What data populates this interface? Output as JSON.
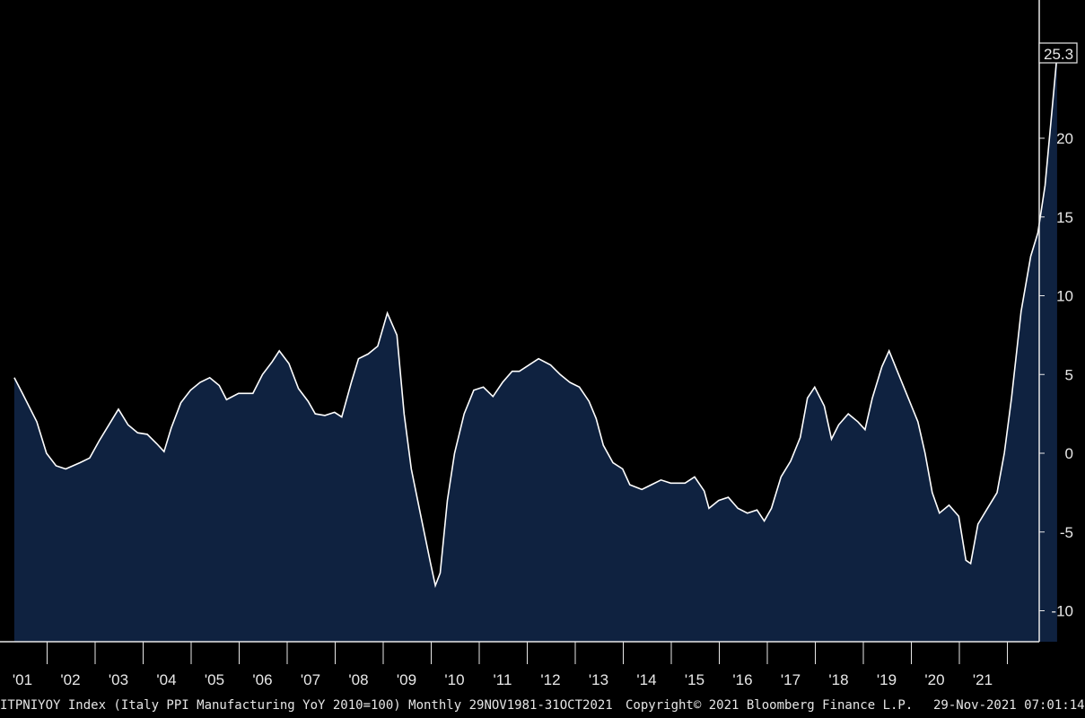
{
  "chart_data": {
    "type": "area",
    "series": [
      {
        "values": [
          [
            2000.83,
            4.8
          ],
          [
            2001.0,
            3.8
          ],
          [
            2001.3,
            2.0
          ],
          [
            2001.5,
            0.0
          ],
          [
            2001.7,
            -0.8
          ],
          [
            2001.9,
            -1.0
          ],
          [
            2002.2,
            -0.6
          ],
          [
            2002.4,
            -0.3
          ],
          [
            2002.6,
            0.8
          ],
          [
            2002.8,
            1.8
          ],
          [
            2003.0,
            2.8
          ],
          [
            2003.2,
            1.8
          ],
          [
            2003.4,
            1.3
          ],
          [
            2003.6,
            1.2
          ],
          [
            2003.8,
            0.6
          ],
          [
            2003.95,
            0.1
          ],
          [
            2004.1,
            1.6
          ],
          [
            2004.3,
            3.2
          ],
          [
            2004.5,
            4.0
          ],
          [
            2004.7,
            4.5
          ],
          [
            2004.9,
            4.8
          ],
          [
            2005.1,
            4.3
          ],
          [
            2005.25,
            3.4
          ],
          [
            2005.5,
            3.8
          ],
          [
            2005.8,
            3.8
          ],
          [
            2006.0,
            5.0
          ],
          [
            2006.2,
            5.8
          ],
          [
            2006.35,
            6.5
          ],
          [
            2006.55,
            5.7
          ],
          [
            2006.75,
            4.1
          ],
          [
            2006.95,
            3.3
          ],
          [
            2007.1,
            2.5
          ],
          [
            2007.3,
            2.4
          ],
          [
            2007.5,
            2.6
          ],
          [
            2007.65,
            2.3
          ],
          [
            2007.85,
            4.5
          ],
          [
            2008.0,
            6.0
          ],
          [
            2008.2,
            6.3
          ],
          [
            2008.4,
            6.8
          ],
          [
            2008.6,
            8.9
          ],
          [
            2008.8,
            7.5
          ],
          [
            2008.95,
            2.5
          ],
          [
            2009.1,
            -1.0
          ],
          [
            2009.3,
            -4.0
          ],
          [
            2009.5,
            -7.0
          ],
          [
            2009.6,
            -8.4
          ],
          [
            2009.7,
            -7.6
          ],
          [
            2009.85,
            -3.0
          ],
          [
            2010.0,
            0.0
          ],
          [
            2010.2,
            2.5
          ],
          [
            2010.4,
            4.0
          ],
          [
            2010.6,
            4.2
          ],
          [
            2010.8,
            3.6
          ],
          [
            2011.0,
            4.5
          ],
          [
            2011.2,
            5.2
          ],
          [
            2011.35,
            5.2
          ],
          [
            2011.55,
            5.6
          ],
          [
            2011.75,
            6.0
          ],
          [
            2012.0,
            5.6
          ],
          [
            2012.2,
            5.0
          ],
          [
            2012.4,
            4.5
          ],
          [
            2012.6,
            4.2
          ],
          [
            2012.8,
            3.3
          ],
          [
            2012.95,
            2.2
          ],
          [
            2013.1,
            0.5
          ],
          [
            2013.3,
            -0.6
          ],
          [
            2013.5,
            -1.0
          ],
          [
            2013.65,
            -2.0
          ],
          [
            2013.9,
            -2.3
          ],
          [
            2014.1,
            -2.0
          ],
          [
            2014.3,
            -1.7
          ],
          [
            2014.5,
            -1.9
          ],
          [
            2014.8,
            -1.9
          ],
          [
            2015.0,
            -1.5
          ],
          [
            2015.2,
            -2.4
          ],
          [
            2015.3,
            -3.5
          ],
          [
            2015.5,
            -3.0
          ],
          [
            2015.7,
            -2.8
          ],
          [
            2015.9,
            -3.5
          ],
          [
            2016.1,
            -3.8
          ],
          [
            2016.3,
            -3.6
          ],
          [
            2016.45,
            -4.3
          ],
          [
            2016.6,
            -3.5
          ],
          [
            2016.8,
            -1.5
          ],
          [
            2017.0,
            -0.5
          ],
          [
            2017.2,
            1.0
          ],
          [
            2017.35,
            3.5
          ],
          [
            2017.5,
            4.2
          ],
          [
            2017.7,
            3.0
          ],
          [
            2017.85,
            0.9
          ],
          [
            2018.0,
            1.8
          ],
          [
            2018.2,
            2.5
          ],
          [
            2018.4,
            2.0
          ],
          [
            2018.55,
            1.5
          ],
          [
            2018.7,
            3.5
          ],
          [
            2018.9,
            5.5
          ],
          [
            2019.05,
            6.5
          ],
          [
            2019.25,
            5.0
          ],
          [
            2019.45,
            3.5
          ],
          [
            2019.65,
            2.0
          ],
          [
            2019.8,
            0.0
          ],
          [
            2019.95,
            -2.5
          ],
          [
            2020.1,
            -3.8
          ],
          [
            2020.3,
            -3.3
          ],
          [
            2020.5,
            -4.0
          ],
          [
            2020.65,
            -6.8
          ],
          [
            2020.75,
            -7.0
          ],
          [
            2020.9,
            -4.5
          ],
          [
            2021.1,
            -3.5
          ],
          [
            2021.3,
            -2.5
          ],
          [
            2021.45,
            0.0
          ],
          [
            2021.6,
            3.5
          ],
          [
            2021.8,
            9.0
          ],
          [
            2022.0,
            12.5
          ],
          [
            2022.15,
            14.0
          ],
          [
            2022.3,
            17.0
          ],
          [
            2022.45,
            22.0
          ],
          [
            2022.55,
            25.3
          ]
        ]
      }
    ],
    "x_tick_labels": [
      "'01",
      "'02",
      "'03",
      "'04",
      "'05",
      "'06",
      "'07",
      "'08",
      "'09",
      "'10",
      "'11",
      "'12",
      "'13",
      "'14",
      "'15",
      "'16",
      "'17",
      "'18",
      "'19",
      "'20",
      "'21"
    ],
    "y_tick_labels": [
      "-10",
      "-5",
      "0",
      "5",
      "10",
      "15",
      "20"
    ],
    "ylim": [
      -12,
      28
    ],
    "last_value_label": "25.3",
    "colors": {
      "line": "#ffffff",
      "fill": "#0f2240",
      "background": "#000000",
      "axis": "#e8e8e8"
    }
  },
  "footer": {
    "description": "ITPNIYOY Index (Italy PPI Manufacturing YoY 2010=100)  Monthly 29NOV1981-31OCT2021",
    "copyright": "Copyright© 2021 Bloomberg Finance L.P.",
    "timestamp": "29-Nov-2021 07:01:14"
  }
}
